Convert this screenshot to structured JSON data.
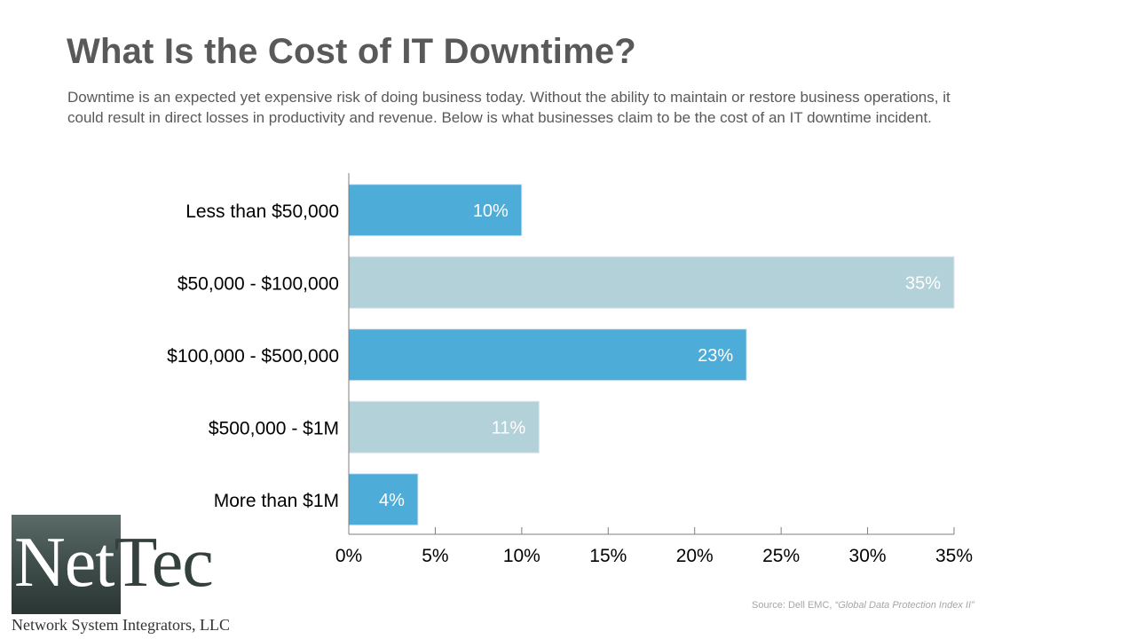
{
  "slide": {
    "title": "What Is the Cost of IT Downtime?",
    "subtitle": "Downtime is an expected yet expensive risk of doing business today. Without the ability to maintain or restore business operations, it could result in direct losses in productivity and revenue. Below is what businesses claim to be the cost of an IT downtime incident.",
    "source_prefix": "Source: Dell EMC, ",
    "source_title": "“Global Data Protection Index II”"
  },
  "logo": {
    "name_part1": "Net",
    "name_part2": "Tec",
    "tagline": "Network System Integrators, LLC"
  },
  "chart_data": {
    "type": "bar",
    "orientation": "horizontal",
    "categories": [
      "Less than $50,000",
      "$50,000 - $100,000",
      "$100,000 - $500,000",
      "$500,000 - $1M",
      "More than $1M"
    ],
    "values": [
      10,
      35,
      23,
      11,
      4
    ],
    "data_labels": [
      "10%",
      "35%",
      "23%",
      "11%",
      "4%"
    ],
    "bar_colors": [
      "#4eacd9",
      "#b3d1d8",
      "#4eacd9",
      "#b3d1d8",
      "#4eacd9"
    ],
    "xlim": [
      0,
      35
    ],
    "xticks": [
      0,
      5,
      10,
      15,
      20,
      25,
      30,
      35
    ],
    "xtick_labels": [
      "0%",
      "5%",
      "10%",
      "15%",
      "20%",
      "25%",
      "30%",
      "35%"
    ],
    "title": "",
    "xlabel": "",
    "ylabel": "",
    "grid": false,
    "label_color": "#ffffff",
    "axis_color": "#7f7f7f"
  }
}
